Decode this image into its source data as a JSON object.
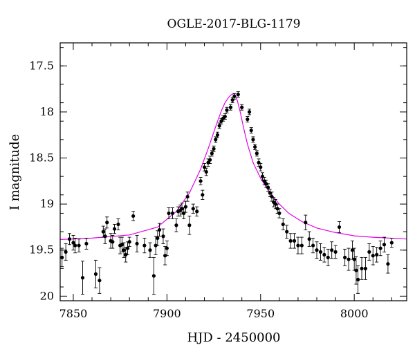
{
  "chart_data": {
    "type": "scatter",
    "title": "OGLE-2017-BLG-1179",
    "xlabel": "HJD - 2450000",
    "ylabel": "I magnitude",
    "xlim": [
      7843,
      8028
    ],
    "ylim": [
      20.05,
      17.25
    ],
    "y_inverted": true,
    "x_ticks": [
      7850,
      7900,
      7950,
      8000
    ],
    "y_ticks": [
      17.5,
      18,
      18.5,
      19,
      19.5,
      20
    ],
    "x_tick_labels": [
      "7850",
      "7900",
      "7950",
      "8000"
    ],
    "y_tick_labels": [
      "17.5",
      "18",
      "18.5",
      "19",
      "19.5",
      "20"
    ],
    "grid": false,
    "model_color": "#e600e6",
    "point_color": "#000000",
    "model": {
      "name": "",
      "x": [
        7843,
        7860,
        7880,
        7895,
        7905,
        7912,
        7918,
        7922,
        7926,
        7929,
        7931,
        7933,
        7934.5,
        7936,
        7937.5,
        7939,
        7941,
        7943,
        7946,
        7950,
        7955,
        7960,
        7965,
        7972,
        7980,
        7990,
        8000,
        8010,
        8028
      ],
      "y": [
        19.385,
        19.37,
        19.335,
        19.25,
        19.08,
        18.88,
        18.62,
        18.4,
        18.16,
        17.99,
        17.9,
        17.84,
        17.81,
        17.8,
        17.87,
        17.99,
        18.18,
        18.35,
        18.55,
        18.72,
        18.88,
        19.0,
        19.1,
        19.19,
        19.26,
        19.31,
        19.345,
        19.36,
        19.38
      ]
    },
    "series": [
      {
        "name": "",
        "x": [
          7844,
          7846,
          7848,
          7850,
          7851,
          7853,
          7855,
          7857,
          7862,
          7864,
          7866,
          7867,
          7868,
          7870,
          7871,
          7872,
          7874,
          7875,
          7876,
          7877,
          7878,
          7879,
          7880,
          7882,
          7884,
          7888,
          7891,
          7893,
          7894,
          7895,
          7896,
          7898,
          7899,
          7900,
          7901,
          7903,
          7905,
          7906,
          7907,
          7908,
          7909,
          7910,
          7911,
          7912,
          7914,
          7916,
          7918,
          7919,
          7920,
          7921,
          7922,
          7923,
          7924,
          7925,
          7926,
          7927,
          7928,
          7929,
          7930,
          7931,
          7932,
          7934,
          7935,
          7936,
          7938,
          7940,
          7943,
          7944,
          7945,
          7946,
          7947,
          7948,
          7949,
          7950,
          7951,
          7952,
          7953,
          7954,
          7955,
          7956,
          7957,
          7958,
          7959,
          7960,
          7962,
          7964,
          7966,
          7968,
          7970,
          7972,
          7974,
          7976,
          7978,
          7980,
          7982,
          7984,
          7986,
          7988,
          7990,
          7992,
          7995,
          7997,
          7999,
          8000,
          8001,
          8002,
          8004,
          8006,
          8008,
          8010,
          8012,
          8014,
          8016,
          8018,
          8020
        ],
        "y": [
          19.58,
          19.52,
          19.38,
          19.42,
          19.45,
          19.45,
          19.8,
          19.43,
          19.76,
          19.83,
          19.3,
          19.35,
          19.2,
          19.4,
          19.41,
          19.27,
          19.22,
          19.45,
          19.44,
          19.5,
          19.55,
          19.48,
          19.41,
          19.13,
          19.43,
          19.45,
          19.5,
          19.78,
          19.45,
          19.37,
          19.28,
          19.35,
          19.56,
          19.48,
          19.1,
          19.1,
          19.23,
          19.08,
          19.07,
          19.05,
          19.1,
          19.03,
          18.92,
          19.23,
          19.05,
          19.08,
          18.75,
          18.9,
          18.6,
          18.65,
          18.55,
          18.52,
          18.45,
          18.4,
          18.3,
          18.25,
          18.15,
          18.1,
          18.07,
          18.05,
          17.98,
          17.95,
          17.87,
          17.83,
          17.81,
          17.95,
          18.08,
          18.0,
          18.2,
          18.3,
          18.38,
          18.45,
          18.55,
          18.6,
          18.7,
          18.75,
          18.78,
          18.82,
          18.88,
          18.92,
          18.98,
          19.0,
          19.05,
          19.1,
          19.22,
          19.3,
          19.4,
          19.4,
          19.45,
          19.45,
          19.2,
          19.38,
          19.45,
          19.5,
          19.52,
          19.55,
          19.58,
          19.5,
          19.52,
          19.25,
          19.58,
          19.6,
          19.5,
          19.6,
          19.72,
          19.82,
          19.7,
          19.7,
          19.52,
          19.56,
          19.55,
          19.48,
          19.44,
          19.65,
          19.42
        ],
        "err": [
          0.1,
          0.09,
          0.06,
          0.08,
          0.08,
          0.07,
          0.18,
          0.06,
          0.15,
          0.14,
          0.06,
          0.08,
          0.06,
          0.08,
          0.07,
          0.05,
          0.06,
          0.09,
          0.08,
          0.08,
          0.08,
          0.07,
          0.05,
          0.05,
          0.09,
          0.08,
          0.08,
          0.2,
          0.1,
          0.08,
          0.07,
          0.08,
          0.1,
          0.08,
          0.06,
          0.06,
          0.07,
          0.05,
          0.06,
          0.06,
          0.06,
          0.06,
          0.05,
          0.1,
          0.05,
          0.05,
          0.04,
          0.05,
          0.04,
          0.04,
          0.04,
          0.04,
          0.03,
          0.03,
          0.03,
          0.03,
          0.03,
          0.03,
          0.03,
          0.03,
          0.03,
          0.03,
          0.03,
          0.03,
          0.03,
          0.03,
          0.03,
          0.03,
          0.03,
          0.03,
          0.03,
          0.03,
          0.04,
          0.04,
          0.04,
          0.04,
          0.04,
          0.04,
          0.04,
          0.05,
          0.05,
          0.05,
          0.05,
          0.05,
          0.06,
          0.07,
          0.08,
          0.08,
          0.09,
          0.09,
          0.08,
          0.08,
          0.08,
          0.09,
          0.09,
          0.08,
          0.09,
          0.09,
          0.07,
          0.06,
          0.09,
          0.12,
          0.1,
          0.12,
          0.15,
          0.15,
          0.12,
          0.12,
          0.09,
          0.1,
          0.08,
          0.08,
          0.08,
          0.1,
          0.05
        ]
      }
    ]
  }
}
